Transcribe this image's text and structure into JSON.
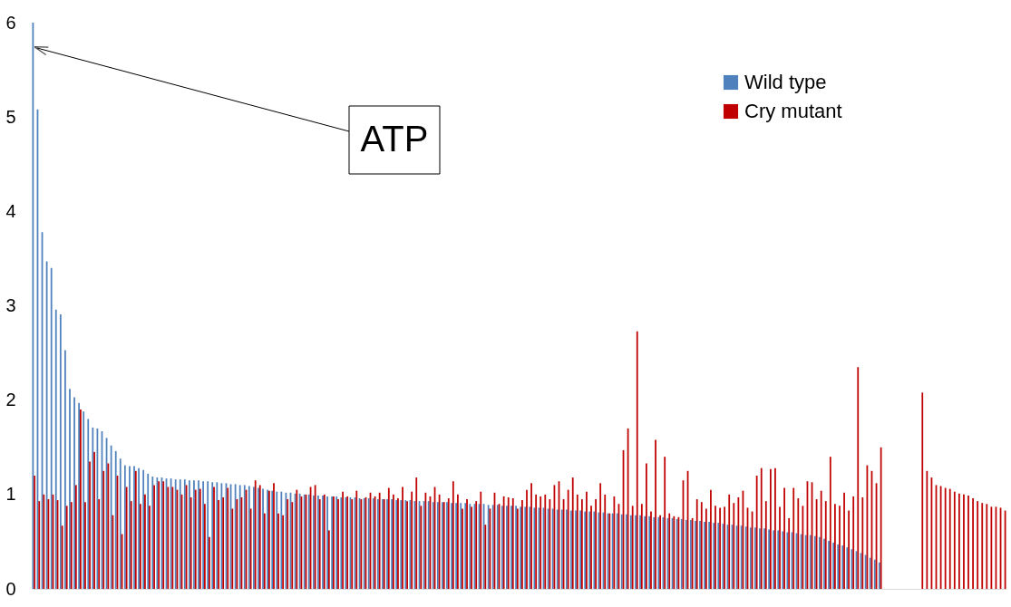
{
  "chart_data": {
    "type": "bar",
    "categories": [
      null,
      null,
      null,
      null,
      null,
      null,
      null,
      null,
      null,
      null,
      null,
      null,
      null,
      null,
      null,
      null,
      null,
      null,
      null,
      null,
      null,
      null,
      null,
      null,
      null,
      null,
      null,
      null,
      null,
      null,
      null,
      null,
      null,
      null,
      null,
      null,
      null,
      null,
      null,
      null,
      null,
      null,
      null,
      null,
      null,
      null,
      null,
      null,
      null,
      null,
      null,
      null,
      null,
      null,
      null,
      null,
      null,
      null,
      null,
      null,
      null,
      null,
      null,
      null,
      null,
      null,
      null,
      null,
      null,
      null,
      null,
      null,
      null,
      null,
      null,
      null,
      null,
      null,
      null,
      null,
      null,
      null,
      null,
      null,
      null,
      null,
      null,
      null,
      null,
      null,
      null,
      null,
      null,
      null,
      null,
      null,
      null,
      null,
      null,
      null,
      null,
      null,
      null,
      null,
      null,
      null,
      null,
      null,
      null,
      null,
      null,
      null,
      null,
      null,
      null,
      null,
      null,
      null,
      null,
      null,
      null,
      null,
      null,
      null,
      null,
      null,
      null,
      null,
      null,
      null,
      null,
      null,
      null,
      null,
      null,
      null,
      null,
      null,
      null,
      null,
      null,
      null,
      null,
      null,
      null,
      null,
      null,
      null,
      null,
      null,
      null,
      null,
      null,
      null,
      null,
      null,
      null,
      null,
      null,
      null,
      null,
      null,
      null,
      null,
      null,
      null,
      null,
      null,
      null,
      null,
      null,
      null,
      null,
      null,
      null,
      null,
      null,
      null,
      null,
      null,
      null,
      null,
      null,
      null,
      null,
      null,
      null,
      null,
      null,
      null,
      null,
      null,
      null,
      null,
      null,
      null,
      null,
      null,
      null,
      null,
      null,
      null,
      null,
      null,
      null,
      null,
      null,
      null,
      null,
      null,
      null,
      null
    ],
    "series": [
      {
        "name": "Wild type",
        "color": "#4f81bd",
        "values": [
          6.0,
          5.08,
          3.78,
          3.47,
          3.4,
          2.96,
          2.91,
          2.53,
          2.12,
          2.03,
          1.97,
          1.88,
          1.8,
          1.71,
          1.7,
          1.67,
          1.6,
          1.52,
          1.46,
          1.38,
          1.31,
          1.3,
          1.3,
          1.28,
          1.26,
          1.22,
          1.19,
          1.18,
          1.18,
          1.17,
          1.17,
          1.16,
          1.16,
          1.16,
          1.15,
          1.15,
          1.15,
          1.14,
          1.14,
          1.13,
          1.13,
          1.12,
          1.12,
          1.11,
          1.11,
          1.1,
          1.1,
          1.09,
          1.08,
          1.07,
          1.06,
          1.05,
          1.04,
          1.03,
          1.03,
          1.02,
          1.02,
          1.01,
          1.01,
          1.0,
          1.0,
          0.99,
          0.99,
          0.99,
          0.98,
          0.98,
          0.98,
          0.97,
          0.97,
          0.97,
          0.97,
          0.96,
          0.96,
          0.96,
          0.96,
          0.95,
          0.95,
          0.95,
          0.95,
          0.94,
          0.94,
          0.94,
          0.94,
          0.93,
          0.93,
          0.93,
          0.93,
          0.92,
          0.92,
          0.92,
          0.92,
          0.91,
          0.91,
          0.91,
          0.91,
          0.9,
          0.9,
          0.9,
          0.9,
          0.89,
          0.89,
          0.89,
          0.88,
          0.88,
          0.88,
          0.88,
          0.87,
          0.87,
          0.87,
          0.86,
          0.86,
          0.86,
          0.85,
          0.85,
          0.84,
          0.84,
          0.84,
          0.83,
          0.83,
          0.83,
          0.82,
          0.82,
          0.82,
          0.81,
          0.81,
          0.8,
          0.8,
          0.8,
          0.79,
          0.79,
          0.78,
          0.78,
          0.78,
          0.77,
          0.77,
          0.76,
          0.76,
          0.76,
          0.75,
          0.75,
          0.74,
          0.74,
          0.73,
          0.73,
          0.72,
          0.72,
          0.71,
          0.71,
          0.7,
          0.7,
          0.69,
          0.68,
          0.68,
          0.67,
          0.67,
          0.66,
          0.65,
          0.65,
          0.64,
          0.64,
          0.63,
          0.62,
          0.62,
          0.61,
          0.6,
          0.6,
          0.59,
          0.58,
          0.57,
          0.57,
          0.56,
          0.55,
          0.53,
          0.51,
          0.49,
          0.47,
          0.46,
          0.44,
          0.42,
          0.4,
          0.38,
          0.36,
          0.33,
          0.31,
          0.28,
          null,
          null,
          null,
          null,
          null,
          null,
          null,
          null,
          null,
          null,
          null,
          null,
          null,
          null,
          null,
          null,
          null,
          null,
          null,
          null,
          null,
          null,
          null,
          null,
          null,
          null,
          null
        ]
      },
      {
        "name": "Cry mutant",
        "color": "#c00000",
        "values": [
          1.2,
          0.93,
          1.0,
          0.95,
          1.0,
          0.94,
          0.67,
          0.88,
          0.92,
          1.1,
          1.9,
          0.92,
          1.35,
          1.45,
          0.95,
          1.25,
          1.33,
          0.78,
          1.2,
          0.58,
          1.08,
          0.93,
          1.25,
          0.9,
          1.0,
          0.88,
          1.1,
          1.14,
          1.14,
          1.08,
          1.08,
          1.05,
          1.0,
          1.1,
          0.97,
          1.05,
          1.06,
          0.9,
          0.55,
          1.08,
          0.94,
          0.97,
          1.07,
          0.85,
          0.95,
          0.97,
          1.05,
          0.85,
          1.15,
          1.1,
          0.8,
          1.04,
          1.12,
          0.8,
          0.78,
          0.95,
          0.92,
          1.05,
          0.98,
          1.0,
          1.08,
          1.1,
          0.95,
          1.0,
          0.62,
          0.98,
          0.95,
          1.03,
          0.98,
          0.95,
          1.04,
          0.95,
          0.97,
          1.02,
          0.98,
          1.02,
          0.95,
          1.07,
          1.0,
          0.96,
          1.08,
          0.93,
          1.03,
          1.18,
          0.88,
          1.02,
          0.98,
          1.08,
          1.0,
          0.92,
          0.96,
          1.14,
          1.0,
          0.85,
          0.95,
          0.87,
          0.93,
          1.03,
          0.68,
          0.85,
          1.02,
          0.9,
          0.98,
          0.97,
          0.96,
          0.85,
          0.94,
          1.05,
          1.12,
          1.0,
          0.98,
          1.0,
          0.95,
          1.1,
          1.14,
          0.95,
          1.05,
          1.18,
          1.0,
          0.95,
          1.03,
          0.88,
          0.95,
          1.12,
          1.0,
          0.8,
          0.98,
          0.9,
          1.47,
          1.7,
          0.88,
          2.73,
          0.9,
          1.33,
          0.82,
          1.58,
          0.78,
          1.4,
          0.8,
          0.77,
          0.76,
          1.15,
          1.25,
          0.75,
          0.95,
          0.92,
          0.85,
          1.05,
          0.88,
          0.86,
          0.87,
          1.0,
          0.91,
          0.97,
          1.04,
          0.86,
          0.82,
          1.2,
          1.28,
          0.93,
          1.27,
          1.28,
          0.87,
          1.07,
          0.75,
          1.07,
          0.96,
          0.88,
          1.14,
          1.13,
          0.95,
          1.04,
          0.93,
          1.4,
          0.9,
          0.88,
          1.02,
          0.83,
          0.98,
          2.35,
          0.97,
          1.31,
          1.25,
          1.12,
          1.5,
          null,
          null,
          null,
          null,
          null,
          null,
          null,
          null,
          2.08,
          1.25,
          1.18,
          1.1,
          1.09,
          1.07,
          1.06,
          1.03,
          1.01,
          1.0,
          0.99,
          0.96,
          0.93,
          0.91,
          0.9,
          0.87,
          0.87,
          0.86,
          0.83
        ]
      }
    ],
    "ylim": [
      0,
      6
    ],
    "yticks": [
      0,
      1,
      2,
      3,
      4,
      5,
      6
    ],
    "grid": false,
    "legend": "top right",
    "tick_labels": "y",
    "annotations": [
      "ATP"
    ]
  }
}
